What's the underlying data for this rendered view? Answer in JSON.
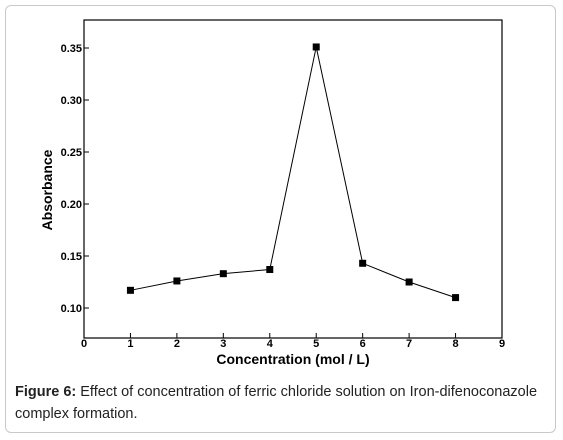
{
  "chart_data": {
    "type": "line",
    "title": "",
    "xlabel": "Concentration (mol / L)",
    "ylabel": "Absorbance",
    "xlim": [
      0,
      9
    ],
    "ylim": [
      0.09,
      0.38
    ],
    "x_ticks": [
      "0",
      "1",
      "2",
      "3",
      "4",
      "5",
      "6",
      "7",
      "8",
      "9"
    ],
    "y_ticks": [
      "0.10",
      "0.15",
      "0.20",
      "0.25",
      "0.30",
      "0.35"
    ],
    "grid": false,
    "series": [
      {
        "marker": "square",
        "x": [
          1,
          2,
          3,
          4,
          5,
          6,
          7,
          8
        ],
        "y": [
          0.117,
          0.126,
          0.133,
          0.137,
          0.351,
          0.143,
          0.125,
          0.11
        ]
      }
    ]
  },
  "caption": {
    "label": "Figure 6:",
    "text": " Effect of concentration of ferric chloride solution on Iron-difenoconazole complex formation."
  }
}
